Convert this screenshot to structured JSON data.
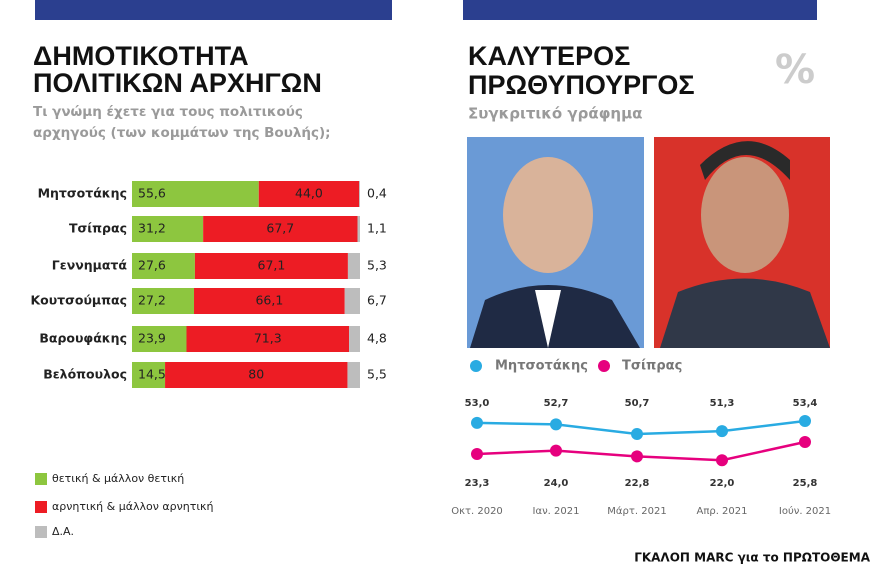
{
  "chart_data": [
    {
      "type": "stacked-bar-horizontal",
      "title": [
        "ΔΗΜΟΤΙΚΟΤΗΤΑ",
        "ΠΟΛΙΤΙΚΩΝ ΑΡΧΗΓΩΝ"
      ],
      "subtitle": [
        "Τι γνώμη έχετε για τους πολιτικούς",
        "αρχηγούς (των κομμάτων της Βουλής);"
      ],
      "categories": [
        "Μητσοτάκης",
        "Τσίπρας",
        "Γεννηματά",
        "Κουτσούμπας",
        "Βαρουφάκης",
        "Βελόπουλος"
      ],
      "series": [
        {
          "name": "θετική & μάλλον θετική",
          "color": "#8dc63f",
          "values": [
            55.6,
            31.2,
            27.6,
            27.2,
            23.9,
            14.5
          ],
          "value_labels": [
            "55,6",
            "31,2",
            "27,6",
            "27,2",
            "23,9",
            "14,5"
          ]
        },
        {
          "name": "αρνητική & μάλλον αρνητική",
          "color": "#ed1c24",
          "values": [
            44.0,
            67.7,
            67.1,
            66.1,
            71.3,
            80
          ],
          "value_labels": [
            "44,0",
            "67,7",
            "67,1",
            "66,1",
            "71,3",
            "80"
          ]
        },
        {
          "name": "Δ.Α.",
          "color": "#bdbdbd",
          "values": [
            0.4,
            1.1,
            5.3,
            6.7,
            4.8,
            5.5
          ],
          "value_labels": [
            "0,4",
            "1,1",
            "5,3",
            "6,7",
            "4,8",
            "5,5"
          ]
        }
      ]
    },
    {
      "type": "line",
      "title": [
        "ΚΑΛΥΤΕΡΟΣ",
        "ΠΡΩΘΥΠΟΥΡΓΟΣ"
      ],
      "subtitle": "Συγκριτικό γράφημα",
      "annotation": "%",
      "categories": [
        "Οκτ. 2020",
        "Ιαν. 2021",
        "Μάρτ. 2021",
        "Απρ. 2021",
        "Ιούν. 2021"
      ],
      "series": [
        {
          "name": "Μητσοτάκης",
          "color": "#29abe2",
          "values": [
            53.0,
            52.7,
            50.7,
            51.3,
            53.4
          ],
          "value_labels": [
            "53,0",
            "52,7",
            "50,7",
            "51,3",
            "53,4"
          ]
        },
        {
          "name": "Τσίπρας",
          "color": "#e6007e",
          "values": [
            23.3,
            24.0,
            22.8,
            22.0,
            25.8
          ],
          "value_labels": [
            "23,3",
            "24,0",
            "22,8",
            "22,0",
            "25,8"
          ]
        }
      ]
    }
  ],
  "source": "ΓΚΑΛΟΠ MARC για το ΠΡΩΤΟΘΕΜΑ"
}
